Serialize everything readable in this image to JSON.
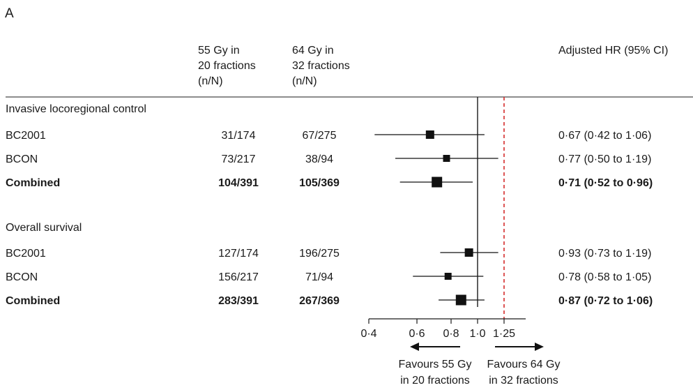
{
  "panel_label": "A",
  "headers": {
    "col1": [
      "55 Gy in",
      "20 fractions",
      "(n/N)"
    ],
    "col2": [
      "64 Gy in",
      "32 fractions",
      "(n/N)"
    ],
    "hr": "Adjusted HR (95% CI)"
  },
  "chart_data": {
    "type": "forest",
    "xscale": "log",
    "xlim": [
      0.4,
      1.5
    ],
    "reference_line": 1.0,
    "margin_line": 1.25,
    "ticks": [
      {
        "value": 0.4,
        "label": "0·4"
      },
      {
        "value": 0.6,
        "label": "0·6"
      },
      {
        "value": 0.8,
        "label": "0·8"
      },
      {
        "value": 1.0,
        "label": "1·0"
      },
      {
        "value": 1.25,
        "label": "1·25"
      }
    ],
    "favours_left": [
      "Favours 55 Gy",
      "in 20 fractions"
    ],
    "favours_right": [
      "Favours 64 Gy",
      "in 32 fractions"
    ],
    "sections": [
      {
        "title": "Invasive locoregional control",
        "rows": [
          {
            "label": "BC2001",
            "n1": "31/174",
            "n2": "67/275",
            "hr": 0.67,
            "lo": 0.42,
            "hi": 1.06,
            "hr_text": "0·67 (0·42 to 1·06)",
            "bold": false,
            "size": "large"
          },
          {
            "label": "BCON",
            "n1": "73/217",
            "n2": "38/94",
            "hr": 0.77,
            "lo": 0.5,
            "hi": 1.19,
            "hr_text": "0·77 (0·50 to 1·19)",
            "bold": false,
            "size": "small"
          },
          {
            "label": "Combined",
            "n1": "104/391",
            "n2": "105/369",
            "hr": 0.71,
            "lo": 0.52,
            "hi": 0.96,
            "hr_text": "0·71 (0·52 to 0·96)",
            "bold": true,
            "size": "xlarge"
          }
        ]
      },
      {
        "title": "Overall survival",
        "rows": [
          {
            "label": "BC2001",
            "n1": "127/174",
            "n2": "196/275",
            "hr": 0.93,
            "lo": 0.73,
            "hi": 1.19,
            "hr_text": "0·93 (0·73 to 1·19)",
            "bold": false,
            "size": "large"
          },
          {
            "label": "BCON",
            "n1": "156/217",
            "n2": "71/94",
            "hr": 0.78,
            "lo": 0.58,
            "hi": 1.05,
            "hr_text": "0·78 (0·58 to 1·05)",
            "bold": false,
            "size": "small"
          },
          {
            "label": "Combined",
            "n1": "283/391",
            "n2": "267/369",
            "hr": 0.87,
            "lo": 0.72,
            "hi": 1.06,
            "hr_text": "0·87 (0·72 to 1·06)",
            "bold": true,
            "size": "xlarge"
          }
        ]
      }
    ],
    "colors": {
      "text": "#1a1a1a",
      "margin_line": "#d42a2a",
      "marker": "#111111"
    }
  }
}
